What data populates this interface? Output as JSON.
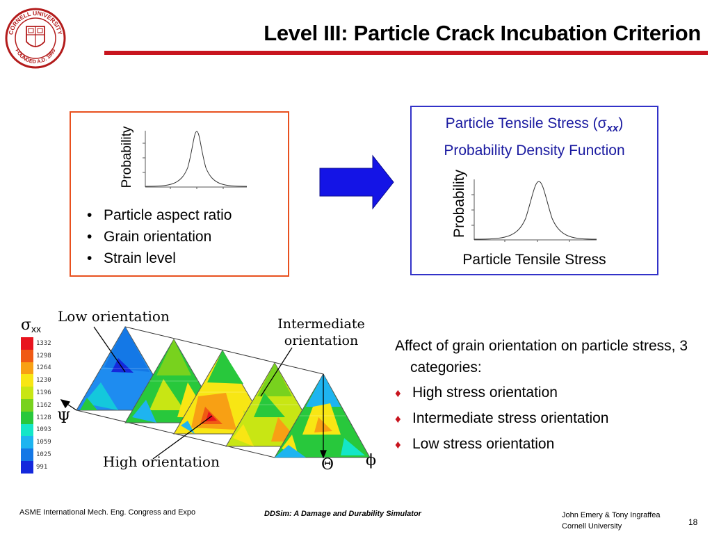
{
  "slide": {
    "title": "Level III: Particle Crack Incubation Criterion",
    "page_number": "18"
  },
  "logo": {
    "icon": "cornell-university-seal",
    "text": "CORNELL UNIVERSITY · FOUNDED A.D. 1865",
    "color": "#b31b1b"
  },
  "left_box": {
    "ylabel": "Probability",
    "bullets": [
      "Particle aspect ratio",
      "Grain orientation",
      "Strain level"
    ],
    "border_color": "#e8501e"
  },
  "arrow": {
    "icon": "right-arrow",
    "color": "#1414e6"
  },
  "right_box": {
    "title_line1_prefix": "Particle Tensile Stress (σ",
    "title_line1_sub": "xx",
    "title_line1_suffix": ")",
    "title_line2": "Probability Density Function",
    "ylabel": "Probability",
    "xlabel": "Particle Tensile Stress",
    "border_color": "#3232c8"
  },
  "figure": {
    "sigma_symbol": "σ",
    "sigma_sub": "xx",
    "legend": [
      {
        "value": "1332",
        "color": "#e8141e"
      },
      {
        "value": "1298",
        "color": "#f05a14"
      },
      {
        "value": "1264",
        "color": "#f8a014"
      },
      {
        "value": "1230",
        "color": "#f8e614"
      },
      {
        "value": "1196",
        "color": "#c8e614"
      },
      {
        "value": "1162",
        "color": "#78d21e"
      },
      {
        "value": "1128",
        "color": "#28c83c"
      },
      {
        "value": "1093",
        "color": "#14e6c8"
      },
      {
        "value": "1059",
        "color": "#1eb4f0"
      },
      {
        "value": "1025",
        "color": "#1478e6"
      },
      {
        "value": "991",
        "color": "#1428dc"
      }
    ],
    "label_low": "Low orientation",
    "label_intermediate_line1": "Intermediate",
    "label_intermediate_line2": "orientation",
    "label_high": "High orientation",
    "axis_psi": "Ψ",
    "axis_theta": "Θ",
    "axis_phi": "ϕ"
  },
  "description": {
    "intro": "Affect of grain orientation on particle stress, 3 categories:",
    "items": [
      "High stress orientation",
      "Intermediate stress orientation",
      "Low stress orientation"
    ]
  },
  "footer": {
    "left": "ASME International Mech. Eng. Congress and Expo",
    "center": "DDSim: A Damage and Durability Simulator",
    "right_line1": "John Emery & Tony Ingraffea",
    "right_line2": "Cornell University"
  }
}
